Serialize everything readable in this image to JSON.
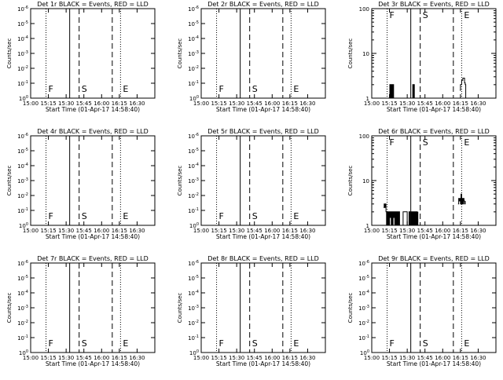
{
  "chart_data": [
    {
      "type": "line",
      "title": "Det 1r BLACK = Events, RED = LLD",
      "xlabel": "Start Time (01-Apr-17 14:58:40)",
      "ylabel": "Counts/sec",
      "y_scale": "log",
      "xlim": [
        "15:00",
        "16:45"
      ],
      "ylim": [
        1.0,
        1e-06
      ],
      "xticks": [
        "15:00",
        "15:15",
        "15:30",
        "15:45",
        "16:00",
        "16:15",
        "16:30"
      ],
      "yticks": [
        "10^0",
        "10^-1",
        "10^-2",
        "10^-3",
        "10^-4",
        "10^-5",
        "10^-6"
      ],
      "markers": [
        {
          "label": "F",
          "time": "15:13",
          "style": "dotted"
        },
        {
          "label": "",
          "time": "15:33",
          "style": "solid"
        },
        {
          "label": "S",
          "time": "15:41",
          "style": "dashed"
        },
        {
          "label": "",
          "time": "16:09",
          "style": "dashed"
        },
        {
          "label": "E",
          "time": "16:16",
          "style": "dotted"
        }
      ],
      "series": []
    },
    {
      "type": "line",
      "title": "Det 2r BLACK = Events, RED = LLD",
      "xlabel": "Start Time (01-Apr-17 14:58:40)",
      "ylabel": "Counts/sec",
      "y_scale": "log",
      "xlim": [
        "15:00",
        "16:45"
      ],
      "ylim": [
        1.0,
        1e-06
      ],
      "xticks": [
        "15:00",
        "15:15",
        "15:30",
        "15:45",
        "16:00",
        "16:15",
        "16:30"
      ],
      "yticks": [
        "10^0",
        "10^-1",
        "10^-2",
        "10^-3",
        "10^-4",
        "10^-5",
        "10^-6"
      ],
      "markers": [
        {
          "label": "F",
          "time": "15:13",
          "style": "dotted"
        },
        {
          "label": "",
          "time": "15:33",
          "style": "solid"
        },
        {
          "label": "S",
          "time": "15:41",
          "style": "dashed"
        },
        {
          "label": "",
          "time": "16:09",
          "style": "dashed"
        },
        {
          "label": "E",
          "time": "16:16",
          "style": "dotted"
        }
      ],
      "series": []
    },
    {
      "type": "line",
      "title": "Det 3r BLACK = Events, RED = LLD",
      "xlabel": "Start Time (01-Apr-17 14:58:40)",
      "ylabel": "Counts/sec",
      "y_scale": "log",
      "xlim": [
        "15:00",
        "16:45"
      ],
      "ylim": [
        1,
        100
      ],
      "xticks": [
        "15:00",
        "15:15",
        "15:30",
        "15:45",
        "16:00",
        "16:15",
        "16:30"
      ],
      "yticks": [
        "1",
        "10",
        "100"
      ],
      "markers": [
        {
          "label": "F",
          "time": "15:13",
          "style": "dotted"
        },
        {
          "label": "",
          "time": "15:33",
          "style": "solid"
        },
        {
          "label": "S",
          "time": "15:41",
          "style": "dashed"
        },
        {
          "label": "",
          "time": "16:09",
          "style": "dashed"
        },
        {
          "label": "E",
          "time": "16:16",
          "style": "dotted"
        }
      ],
      "series": [
        {
          "t": [
            15.0,
            15.3,
            15.6,
            15.9,
            15.95,
            15.98,
            16.0,
            16.5,
            16.6,
            16.7,
            16.75,
            16.85,
            17.0,
            17.3,
            17.4,
            17.6,
            17.7,
            17.9,
            18.0,
            18.3,
            18.5,
            18.6
          ],
          "y": [
            1,
            2,
            1,
            2,
            1,
            2,
            1,
            2,
            1,
            2,
            1,
            2,
            1,
            2,
            1,
            2,
            1,
            2,
            1,
            2,
            1,
            1
          ]
        },
        {
          "t": [
            34.5,
            34.7,
            34.9,
            35.1,
            35.3,
            35.5,
            35.6,
            35.8,
            36.0
          ],
          "y": [
            1,
            2,
            1,
            2,
            1,
            2,
            1,
            2,
            1
          ]
        },
        {
          "t": [
            74.5,
            75.0,
            75.5,
            76.0,
            76.5,
            77.0,
            77.5,
            78.0,
            78.5,
            79.0,
            79.5,
            80.0
          ],
          "y": [
            1.5,
            2,
            2,
            2.5,
            2.5,
            2.8,
            2.8,
            2.8,
            2.2,
            2,
            1,
            1
          ]
        }
      ]
    },
    {
      "type": "line",
      "title": "Det 4r BLACK = Events, RED = LLD",
      "xlabel": "Start Time (01-Apr-17 14:58:40)",
      "ylabel": "Counts/sec",
      "y_scale": "log",
      "xlim": [
        "15:00",
        "16:45"
      ],
      "ylim": [
        1.0,
        1e-06
      ],
      "xticks": [
        "15:00",
        "15:15",
        "15:30",
        "15:45",
        "16:00",
        "16:15",
        "16:30"
      ],
      "yticks": [
        "10^0",
        "10^-1",
        "10^-2",
        "10^-3",
        "10^-4",
        "10^-5",
        "10^-6"
      ],
      "markers": [
        {
          "label": "F",
          "time": "15:13",
          "style": "dotted"
        },
        {
          "label": "",
          "time": "15:33",
          "style": "solid"
        },
        {
          "label": "S",
          "time": "15:41",
          "style": "dashed"
        },
        {
          "label": "",
          "time": "16:09",
          "style": "dashed"
        },
        {
          "label": "E",
          "time": "16:16",
          "style": "dotted"
        }
      ],
      "series": []
    },
    {
      "type": "line",
      "title": "Det 5r BLACK = Events, RED = LLD",
      "xlabel": "Start Time (01-Apr-17 14:58:40)",
      "ylabel": "Counts/sec",
      "y_scale": "log",
      "xlim": [
        "15:00",
        "16:45"
      ],
      "ylim": [
        1.0,
        1e-06
      ],
      "xticks": [
        "15:00",
        "15:15",
        "15:30",
        "15:45",
        "16:00",
        "16:15",
        "16:30"
      ],
      "yticks": [
        "10^0",
        "10^-1",
        "10^-2",
        "10^-3",
        "10^-4",
        "10^-5",
        "10^-6"
      ],
      "markers": [
        {
          "label": "F",
          "time": "15:13",
          "style": "dotted"
        },
        {
          "label": "",
          "time": "15:33",
          "style": "solid"
        },
        {
          "label": "S",
          "time": "15:41",
          "style": "dashed"
        },
        {
          "label": "",
          "time": "16:09",
          "style": "dashed"
        },
        {
          "label": "E",
          "time": "16:16",
          "style": "dotted"
        }
      ],
      "series": []
    },
    {
      "type": "line",
      "title": "Det 6r BLACK = Events, RED = LLD",
      "xlabel": "Start Time (01-Apr-17 14:58:40)",
      "ylabel": "Counts/sec",
      "y_scale": "log",
      "xlim": [
        "15:00",
        "16:45"
      ],
      "ylim": [
        1,
        100
      ],
      "xticks": [
        "15:00",
        "15:15",
        "15:30",
        "15:45",
        "16:00",
        "16:15",
        "16:30"
      ],
      "yticks": [
        "1",
        "10",
        "100"
      ],
      "markers": [
        {
          "label": "F",
          "time": "15:13",
          "style": "dotted"
        },
        {
          "label": "",
          "time": "15:33",
          "style": "solid"
        },
        {
          "label": "S",
          "time": "15:41",
          "style": "dashed"
        },
        {
          "label": "",
          "time": "16:09",
          "style": "dashed"
        },
        {
          "label": "E",
          "time": "16:16",
          "style": "dotted"
        }
      ],
      "series": [
        {
          "t": [
            10.0,
            10.5,
            11.0,
            11.5,
            12.0,
            12.5,
            13.0,
            13.5,
            14.0,
            14.5,
            15.0,
            15.5,
            16.0,
            16.5,
            17.0,
            17.5,
            18.0,
            18.5,
            19.0,
            19.5,
            20.0,
            20.5,
            21.0,
            21.5,
            22.0,
            22.5,
            23.0,
            23.5,
            24.0
          ],
          "y": [
            2.5,
            3,
            2.5,
            3,
            2,
            1,
            2,
            1,
            2,
            1,
            2,
            1.5,
            2,
            1,
            2,
            1,
            2,
            1.5,
            2,
            1,
            2,
            1,
            2,
            1,
            2,
            1,
            2,
            1,
            1
          ]
        },
        {
          "t": [
            26.0,
            26.5,
            27.0,
            27.5,
            28.0,
            28.5,
            29.0,
            29.5,
            30.0,
            30.5,
            31.0,
            31.5,
            32.0,
            32.5,
            33.0,
            33.5,
            34.0,
            34.5,
            35.0,
            35.5,
            36.0,
            36.5,
            37.0,
            37.5,
            38.0,
            38.5,
            39.0
          ],
          "y": [
            1,
            2,
            2,
            2,
            2,
            2,
            2,
            2,
            1,
            1,
            1,
            2,
            1,
            2,
            2,
            1,
            2,
            1,
            2,
            1,
            2,
            1,
            2,
            1,
            2,
            1,
            2
          ]
        },
        {
          "t": [
            73.0,
            73.5,
            74.0,
            74.5,
            75.0,
            75.5,
            76.0,
            76.5,
            77.0,
            77.5,
            78.0,
            78.5,
            79.0
          ],
          "y": [
            3,
            4,
            3.5,
            4,
            3,
            5,
            3,
            4,
            3,
            4,
            3.5,
            3,
            3.5
          ]
        }
      ]
    },
    {
      "type": "line",
      "title": "Det 7r BLACK = Events, RED = LLD",
      "xlabel": "Start Time (01-Apr-17 14:58:40)",
      "ylabel": "Counts/sec",
      "y_scale": "log",
      "xlim": [
        "15:00",
        "16:45"
      ],
      "ylim": [
        1.0,
        1e-06
      ],
      "xticks": [
        "15:00",
        "15:15",
        "15:30",
        "15:45",
        "16:00",
        "16:15",
        "16:30"
      ],
      "yticks": [
        "10^0",
        "10^-1",
        "10^-2",
        "10^-3",
        "10^-4",
        "10^-5",
        "10^-6"
      ],
      "markers": [
        {
          "label": "F",
          "time": "15:13",
          "style": "dotted"
        },
        {
          "label": "",
          "time": "15:33",
          "style": "solid"
        },
        {
          "label": "S",
          "time": "15:41",
          "style": "dashed"
        },
        {
          "label": "",
          "time": "16:09",
          "style": "dashed"
        },
        {
          "label": "E",
          "time": "16:16",
          "style": "dotted"
        }
      ],
      "series": []
    },
    {
      "type": "line",
      "title": "Det 8r BLACK = Events, RED = LLD",
      "xlabel": "Start Time (01-Apr-17 14:58:40)",
      "ylabel": "Counts/sec",
      "y_scale": "log",
      "xlim": [
        "15:00",
        "16:45"
      ],
      "ylim": [
        1.0,
        1e-06
      ],
      "xticks": [
        "15:00",
        "15:15",
        "15:30",
        "15:45",
        "16:00",
        "16:15",
        "16:30"
      ],
      "yticks": [
        "10^0",
        "10^-1",
        "10^-2",
        "10^-3",
        "10^-4",
        "10^-5",
        "10^-6"
      ],
      "markers": [
        {
          "label": "F",
          "time": "15:13",
          "style": "dotted"
        },
        {
          "label": "",
          "time": "15:33",
          "style": "solid"
        },
        {
          "label": "S",
          "time": "15:41",
          "style": "dashed"
        },
        {
          "label": "",
          "time": "16:09",
          "style": "dashed"
        },
        {
          "label": "E",
          "time": "16:16",
          "style": "dotted"
        }
      ],
      "series": []
    },
    {
      "type": "line",
      "title": "Det 9r BLACK = Events, RED = LLD",
      "xlabel": "Start Time (01-Apr-17 14:58:40)",
      "ylabel": "Counts/sec",
      "y_scale": "log",
      "xlim": [
        "15:00",
        "16:45"
      ],
      "ylim": [
        1.0,
        1e-06
      ],
      "xticks": [
        "15:00",
        "15:15",
        "15:30",
        "15:45",
        "16:00",
        "16:15",
        "16:30"
      ],
      "yticks": [
        "10^0",
        "10^-1",
        "10^-2",
        "10^-3",
        "10^-4",
        "10^-5",
        "10^-6"
      ],
      "markers": [
        {
          "label": "F",
          "time": "15:13",
          "style": "dotted"
        },
        {
          "label": "",
          "time": "15:33",
          "style": "solid"
        },
        {
          "label": "S",
          "time": "15:41",
          "style": "dashed"
        },
        {
          "label": "",
          "time": "16:09",
          "style": "dashed"
        },
        {
          "label": "E",
          "time": "16:16",
          "style": "dotted"
        }
      ],
      "series": []
    }
  ]
}
